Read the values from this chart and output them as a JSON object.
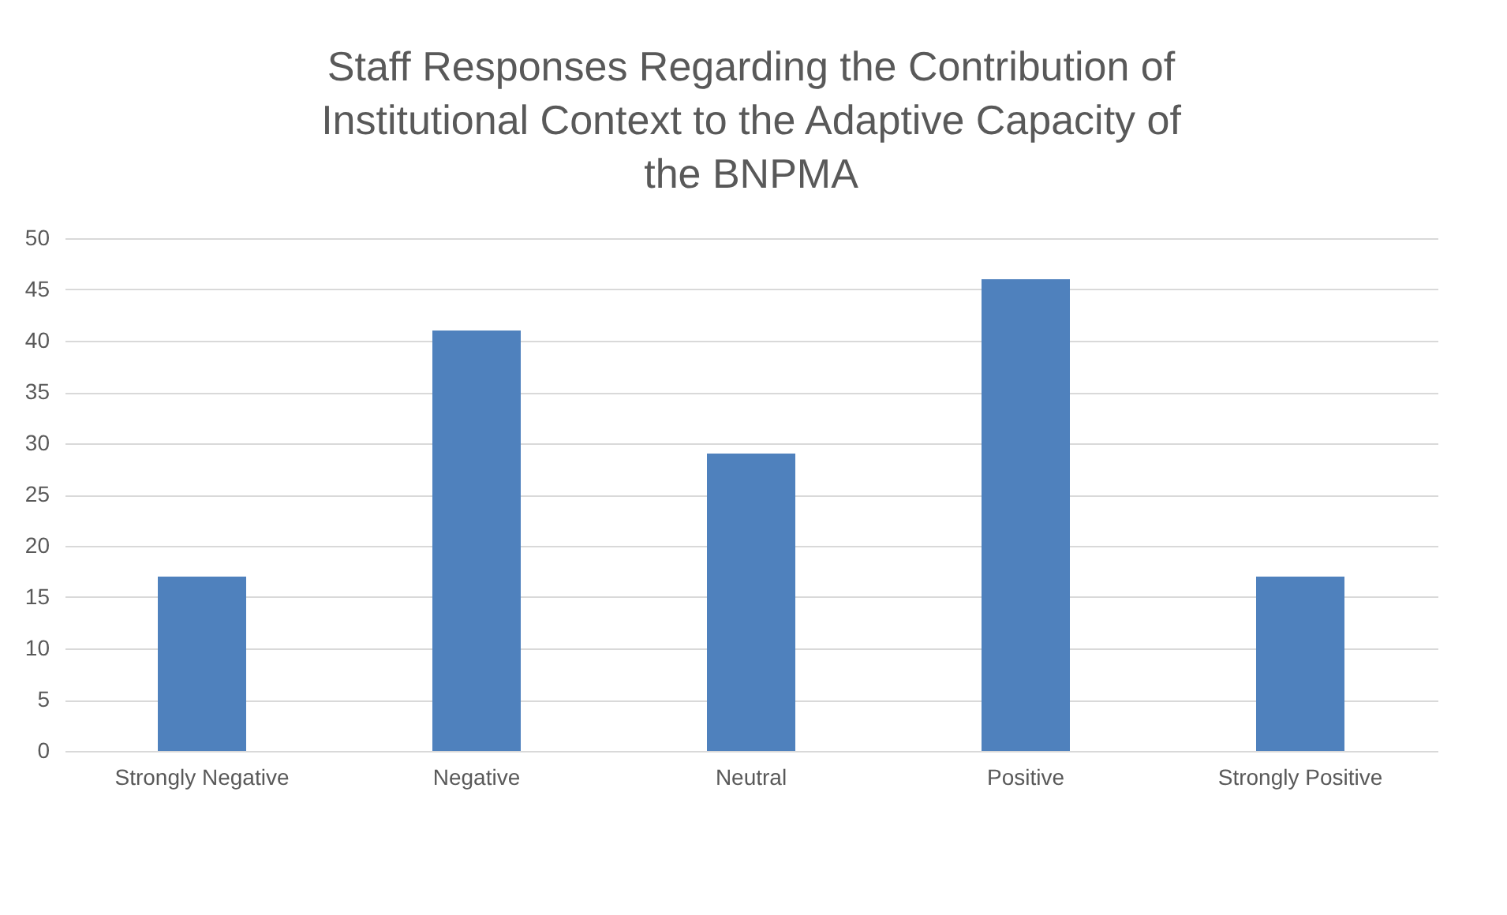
{
  "chart_data": {
    "type": "bar",
    "title": "Staff Responses Regarding the Contribution of Institutional Context to the Adaptive Capacity of the BNPMA",
    "categories": [
      "Strongly Negative",
      "Negative",
      "Neutral",
      "Positive",
      "Strongly Positive"
    ],
    "values": [
      17,
      41,
      29,
      46,
      17
    ],
    "color": "#4f81bd",
    "ylim": [
      0,
      50
    ],
    "yticks": [
      0,
      5,
      10,
      15,
      20,
      25,
      30,
      35,
      40,
      45,
      50
    ],
    "grid": "y"
  }
}
